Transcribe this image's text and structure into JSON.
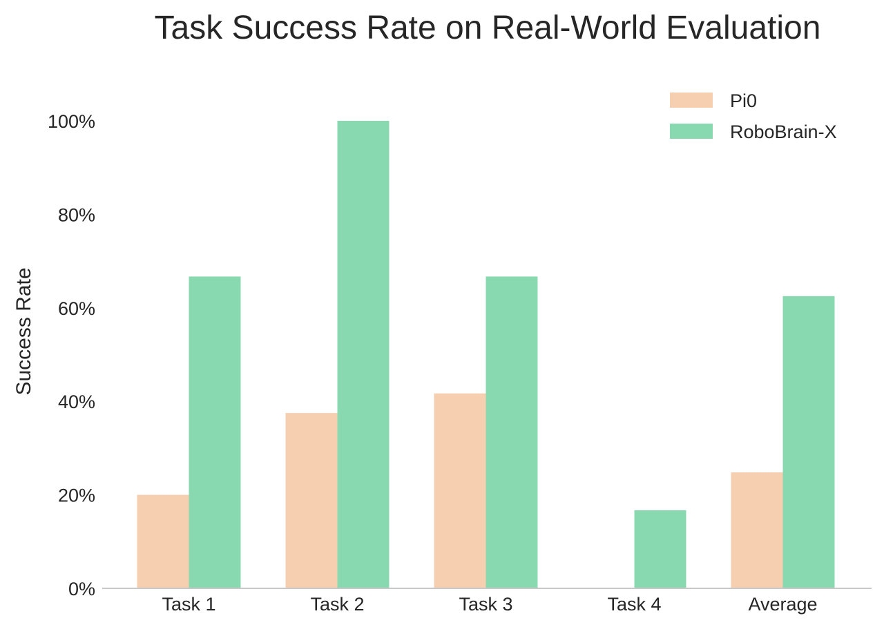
{
  "chart_data": {
    "type": "bar",
    "title": "Task Success Rate on Real-World Evaluation",
    "xlabel": "",
    "ylabel": "Success Rate",
    "categories": [
      "Task 1",
      "Task 2",
      "Task 3",
      "Task 4",
      "Average"
    ],
    "series": [
      {
        "name": "Pi0",
        "values": [
          20,
          37.5,
          41.7,
          0,
          24.8
        ],
        "color": "#f6cfb0"
      },
      {
        "name": "RoboBrain-X",
        "values": [
          66.7,
          100,
          66.7,
          16.7,
          62.5
        ],
        "color": "#89d9b0"
      }
    ],
    "ylim": [
      0,
      100
    ],
    "yticks": [
      0,
      20,
      40,
      60,
      80,
      100
    ],
    "ytick_labels": [
      "0%",
      "20%",
      "40%",
      "60%",
      "80%",
      "100%"
    ],
    "legend_position": "top-right",
    "grid": false
  }
}
